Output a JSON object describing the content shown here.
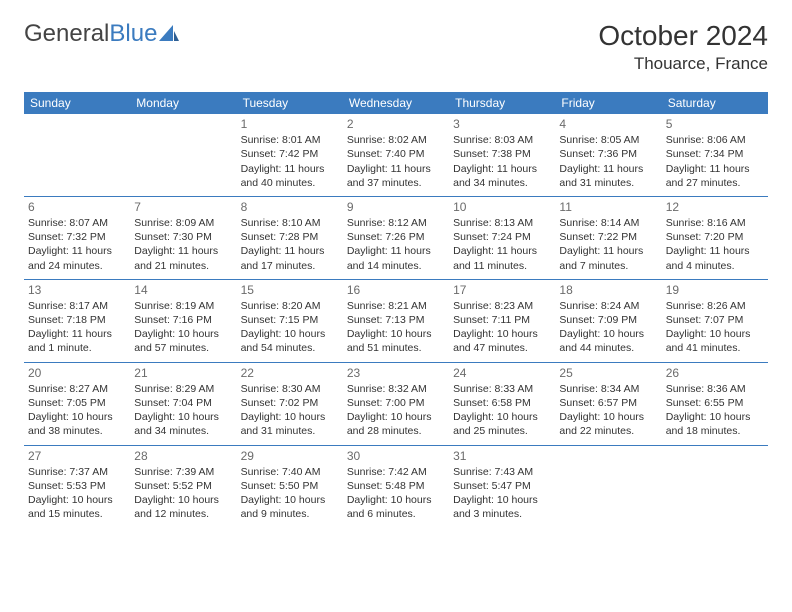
{
  "brand": {
    "part1": "General",
    "part2": "Blue"
  },
  "title": {
    "month": "October 2024",
    "location": "Thouarce, France"
  },
  "weekdays": [
    "Sunday",
    "Monday",
    "Tuesday",
    "Wednesday",
    "Thursday",
    "Friday",
    "Saturday"
  ],
  "colors": {
    "header_bg": "#3b7bbf",
    "border": "#3b7bbf",
    "text": "#333333"
  },
  "rows": [
    [
      null,
      null,
      {
        "n": "1",
        "sr": "8:01 AM",
        "ss": "7:42 PM",
        "dl": "11 hours and 40 minutes."
      },
      {
        "n": "2",
        "sr": "8:02 AM",
        "ss": "7:40 PM",
        "dl": "11 hours and 37 minutes."
      },
      {
        "n": "3",
        "sr": "8:03 AM",
        "ss": "7:38 PM",
        "dl": "11 hours and 34 minutes."
      },
      {
        "n": "4",
        "sr": "8:05 AM",
        "ss": "7:36 PM",
        "dl": "11 hours and 31 minutes."
      },
      {
        "n": "5",
        "sr": "8:06 AM",
        "ss": "7:34 PM",
        "dl": "11 hours and 27 minutes."
      }
    ],
    [
      {
        "n": "6",
        "sr": "8:07 AM",
        "ss": "7:32 PM",
        "dl": "11 hours and 24 minutes."
      },
      {
        "n": "7",
        "sr": "8:09 AM",
        "ss": "7:30 PM",
        "dl": "11 hours and 21 minutes."
      },
      {
        "n": "8",
        "sr": "8:10 AM",
        "ss": "7:28 PM",
        "dl": "11 hours and 17 minutes."
      },
      {
        "n": "9",
        "sr": "8:12 AM",
        "ss": "7:26 PM",
        "dl": "11 hours and 14 minutes."
      },
      {
        "n": "10",
        "sr": "8:13 AM",
        "ss": "7:24 PM",
        "dl": "11 hours and 11 minutes."
      },
      {
        "n": "11",
        "sr": "8:14 AM",
        "ss": "7:22 PM",
        "dl": "11 hours and 7 minutes."
      },
      {
        "n": "12",
        "sr": "8:16 AM",
        "ss": "7:20 PM",
        "dl": "11 hours and 4 minutes."
      }
    ],
    [
      {
        "n": "13",
        "sr": "8:17 AM",
        "ss": "7:18 PM",
        "dl": "11 hours and 1 minute."
      },
      {
        "n": "14",
        "sr": "8:19 AM",
        "ss": "7:16 PM",
        "dl": "10 hours and 57 minutes."
      },
      {
        "n": "15",
        "sr": "8:20 AM",
        "ss": "7:15 PM",
        "dl": "10 hours and 54 minutes."
      },
      {
        "n": "16",
        "sr": "8:21 AM",
        "ss": "7:13 PM",
        "dl": "10 hours and 51 minutes."
      },
      {
        "n": "17",
        "sr": "8:23 AM",
        "ss": "7:11 PM",
        "dl": "10 hours and 47 minutes."
      },
      {
        "n": "18",
        "sr": "8:24 AM",
        "ss": "7:09 PM",
        "dl": "10 hours and 44 minutes."
      },
      {
        "n": "19",
        "sr": "8:26 AM",
        "ss": "7:07 PM",
        "dl": "10 hours and 41 minutes."
      }
    ],
    [
      {
        "n": "20",
        "sr": "8:27 AM",
        "ss": "7:05 PM",
        "dl": "10 hours and 38 minutes."
      },
      {
        "n": "21",
        "sr": "8:29 AM",
        "ss": "7:04 PM",
        "dl": "10 hours and 34 minutes."
      },
      {
        "n": "22",
        "sr": "8:30 AM",
        "ss": "7:02 PM",
        "dl": "10 hours and 31 minutes."
      },
      {
        "n": "23",
        "sr": "8:32 AM",
        "ss": "7:00 PM",
        "dl": "10 hours and 28 minutes."
      },
      {
        "n": "24",
        "sr": "8:33 AM",
        "ss": "6:58 PM",
        "dl": "10 hours and 25 minutes."
      },
      {
        "n": "25",
        "sr": "8:34 AM",
        "ss": "6:57 PM",
        "dl": "10 hours and 22 minutes."
      },
      {
        "n": "26",
        "sr": "8:36 AM",
        "ss": "6:55 PM",
        "dl": "10 hours and 18 minutes."
      }
    ],
    [
      {
        "n": "27",
        "sr": "7:37 AM",
        "ss": "5:53 PM",
        "dl": "10 hours and 15 minutes."
      },
      {
        "n": "28",
        "sr": "7:39 AM",
        "ss": "5:52 PM",
        "dl": "10 hours and 12 minutes."
      },
      {
        "n": "29",
        "sr": "7:40 AM",
        "ss": "5:50 PM",
        "dl": "10 hours and 9 minutes."
      },
      {
        "n": "30",
        "sr": "7:42 AM",
        "ss": "5:48 PM",
        "dl": "10 hours and 6 minutes."
      },
      {
        "n": "31",
        "sr": "7:43 AM",
        "ss": "5:47 PM",
        "dl": "10 hours and 3 minutes."
      },
      null,
      null
    ]
  ],
  "labels": {
    "sunrise": "Sunrise:",
    "sunset": "Sunset:",
    "daylight": "Daylight:"
  }
}
